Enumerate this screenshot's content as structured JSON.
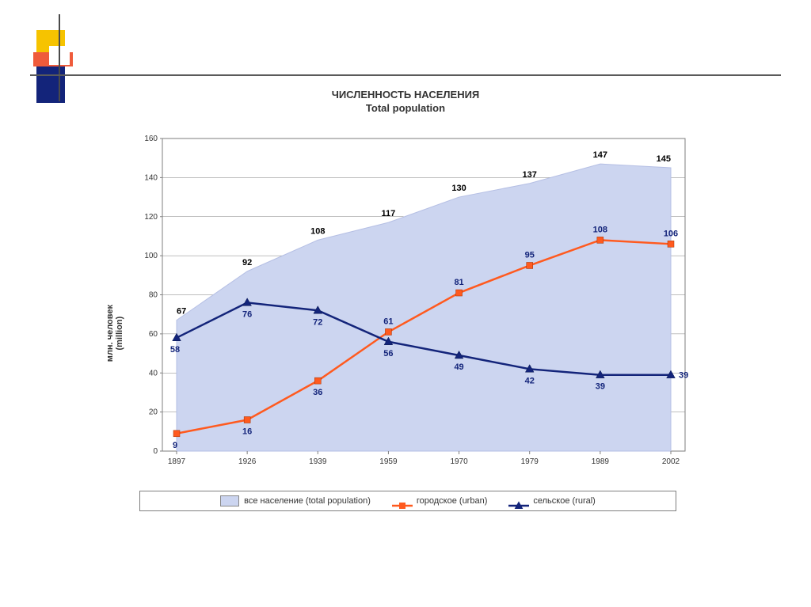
{
  "title_line1": "ЧИСЛЕННОСТЬ НАСЕЛЕНИЯ",
  "title_line2": "Total population",
  "ylabel_line1": "млн. человек",
  "ylabel_line2": "(million)",
  "chart": {
    "type": "area+line",
    "categories": [
      "1897",
      "1926",
      "1939",
      "1959",
      "1970",
      "1979",
      "1989",
      "2002"
    ],
    "ylim": [
      0,
      160
    ],
    "ytick_step": 20,
    "yticks": [
      0,
      20,
      40,
      60,
      80,
      100,
      120,
      140,
      160
    ],
    "background_color": "#ffffff",
    "plot_border_color": "#7f7f7f",
    "grid_color": "#7f7f7f",
    "axis_font_size": 10,
    "label_font_size": 11,
    "series": {
      "total": {
        "label": "все население    (total population)",
        "values": [
          67,
          92,
          108,
          117,
          130,
          137,
          147,
          145
        ],
        "color_fill": "#ccd5f0",
        "color_line": "#b5bfe4",
        "label_color": "#000000",
        "type": "area"
      },
      "urban": {
        "label": "городское    (urban)",
        "values": [
          9,
          16,
          36,
          61,
          81,
          95,
          108,
          106
        ],
        "color": "#ff5a1f",
        "marker": "square",
        "marker_size": 8,
        "line_width": 2.5,
        "label_color": "#13247a",
        "type": "line"
      },
      "rural": {
        "label": "сельское   (rural)",
        "values": [
          58,
          76,
          72,
          56,
          49,
          42,
          39,
          39
        ],
        "color": "#13247a",
        "marker": "triangle",
        "marker_size": 9,
        "line_width": 2.5,
        "label_color": "#13247a",
        "type": "line"
      }
    }
  },
  "legend": {
    "border_color": "#7f7f7f"
  }
}
